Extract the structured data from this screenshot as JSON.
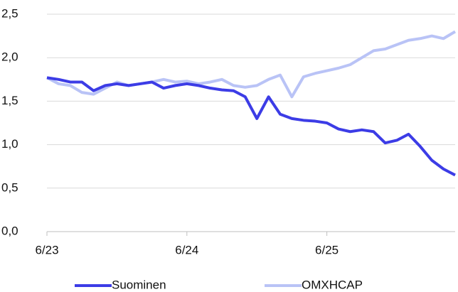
{
  "chart_data": {
    "type": "line",
    "x": [
      "2023-06",
      "2023-07",
      "2023-08",
      "2023-09",
      "2023-10",
      "2023-11",
      "2023-12",
      "2024-01",
      "2024-02",
      "2024-03",
      "2024-04",
      "2024-05",
      "2024-06",
      "2024-07",
      "2024-08",
      "2024-09",
      "2024-10",
      "2024-11",
      "2024-12",
      "2025-01",
      "2025-02",
      "2025-03",
      "2025-04",
      "2025-05",
      "2025-06",
      "2025-07",
      "2025-08",
      "2025-09",
      "2025-10",
      "2025-11",
      "2025-12",
      "2026-01",
      "2026-02",
      "2026-03",
      "2026-04",
      "2026-05"
    ],
    "series": [
      {
        "name": "Suominen",
        "color": "#3c3ce6",
        "values": [
          1.77,
          1.75,
          1.72,
          1.72,
          1.62,
          1.68,
          1.7,
          1.68,
          1.7,
          1.72,
          1.65,
          1.68,
          1.7,
          1.68,
          1.65,
          1.63,
          1.62,
          1.55,
          1.3,
          1.55,
          1.35,
          1.3,
          1.28,
          1.27,
          1.25,
          1.18,
          1.15,
          1.17,
          1.15,
          1.02,
          1.05,
          1.12,
          0.98,
          0.82,
          0.72,
          0.65
        ]
      },
      {
        "name": "OMXHCAP",
        "color": "#b9c3f6",
        "values": [
          1.77,
          1.7,
          1.68,
          1.6,
          1.58,
          1.65,
          1.72,
          1.68,
          1.7,
          1.72,
          1.75,
          1.72,
          1.73,
          1.7,
          1.72,
          1.75,
          1.68,
          1.66,
          1.68,
          1.75,
          1.8,
          1.55,
          1.78,
          1.82,
          1.85,
          1.88,
          1.92,
          2.0,
          2.08,
          2.1,
          2.15,
          2.2,
          2.22,
          2.25,
          2.22,
          2.3
        ]
      }
    ],
    "xlim": [
      "2023-06",
      "2026-05"
    ],
    "xticks": [
      {
        "value": "2023-06",
        "label": "6/23"
      },
      {
        "value": "2024-06",
        "label": "6/24"
      },
      {
        "value": "2025-06",
        "label": "6/25"
      }
    ],
    "ylim": [
      0,
      2.5
    ],
    "yticks": [
      {
        "value": 0,
        "label": "0,0"
      },
      {
        "value": 0.5,
        "label": "0,5"
      },
      {
        "value": 1,
        "label": "1,0"
      },
      {
        "value": 1.5,
        "label": "1,5"
      },
      {
        "value": 2,
        "label": "2,0"
      },
      {
        "value": 2.5,
        "label": "2,5"
      }
    ],
    "grid": true
  }
}
